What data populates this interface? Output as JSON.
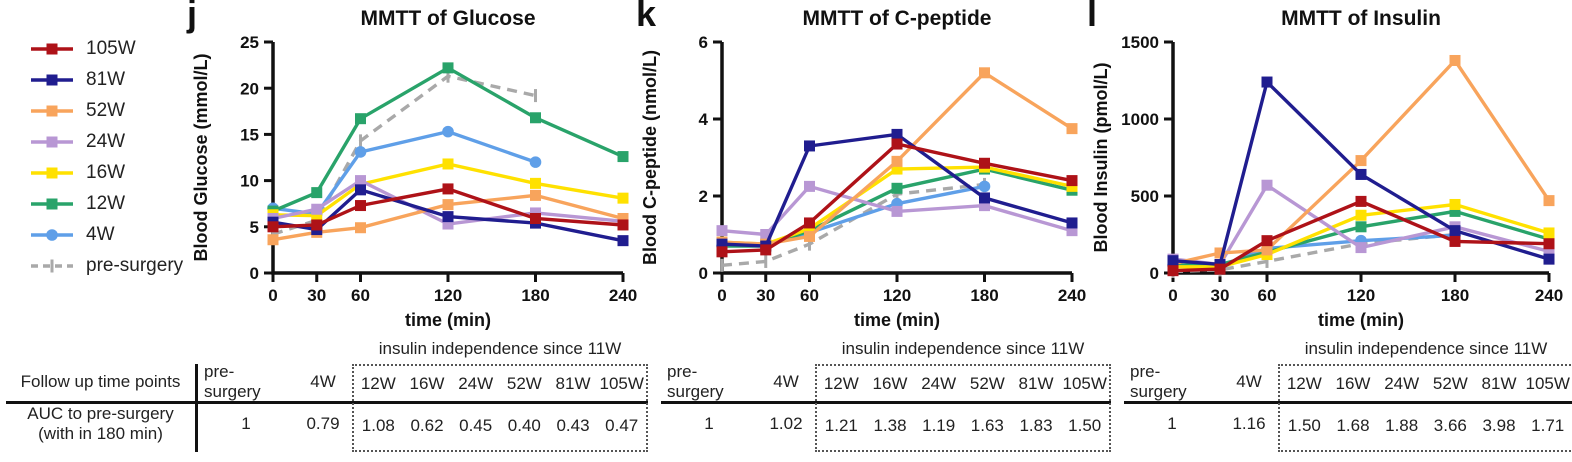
{
  "legend": {
    "items": [
      {
        "label": "105W",
        "color": "#AE1218",
        "marker": "square",
        "dash": false
      },
      {
        "label": "81W",
        "color": "#201D8F",
        "marker": "square",
        "dash": false
      },
      {
        "label": "52W",
        "color": "#F8A45C",
        "marker": "square",
        "dash": false
      },
      {
        "label": "24W",
        "color": "#B897D4",
        "marker": "square",
        "dash": false
      },
      {
        "label": "16W",
        "color": "#FFE100",
        "marker": "square",
        "dash": false
      },
      {
        "label": "12W",
        "color": "#29A36A",
        "marker": "square",
        "dash": false
      },
      {
        "label": "4W",
        "color": "#5F9FE8",
        "marker": "circle",
        "dash": false
      },
      {
        "label": "pre-surgery",
        "color": "#A9A9A9",
        "marker": "tick",
        "dash": true
      }
    ]
  },
  "chart_data": [
    {
      "type": "line",
      "panel_label": "j",
      "title": "MMTT of Glucose",
      "ylabel": "Blood Glucose (mmol/L)",
      "xlabel": "time (min)",
      "x": [
        0,
        30,
        60,
        120,
        180,
        240
      ],
      "ylim": [
        0,
        25
      ],
      "yticks": [
        0,
        5,
        10,
        15,
        20,
        25
      ],
      "series": [
        {
          "name": "105W",
          "values": [
            5.0,
            5.2,
            7.3,
            9.1,
            5.9,
            5.2
          ]
        },
        {
          "name": "81W",
          "values": [
            5.5,
            4.7,
            9.0,
            6.1,
            5.4,
            3.5
          ]
        },
        {
          "name": "52W",
          "values": [
            3.6,
            4.4,
            4.9,
            7.4,
            8.4,
            5.9
          ]
        },
        {
          "name": "24W",
          "values": [
            5.9,
            6.9,
            10.0,
            5.3,
            6.5,
            5.6
          ]
        },
        {
          "name": "16W",
          "values": [
            6.3,
            6.2,
            9.6,
            11.8,
            9.7,
            8.1
          ]
        },
        {
          "name": "12W",
          "values": [
            6.7,
            8.7,
            16.7,
            22.2,
            16.8,
            12.6
          ]
        },
        {
          "name": "4W",
          "values": [
            7.0,
            6.4,
            13.1,
            15.3,
            12.0,
            null
          ]
        },
        {
          "name": "pre-surgery",
          "values": [
            4.2,
            5.7,
            14.3,
            21.3,
            19.2,
            null
          ]
        }
      ]
    },
    {
      "type": "line",
      "panel_label": "k",
      "title": "MMTT of C-peptide",
      "ylabel": "Blood C-peptide (nmol/L)",
      "xlabel": "time (min)",
      "x": [
        0,
        30,
        60,
        120,
        180,
        240
      ],
      "ylim": [
        0,
        6
      ],
      "yticks": [
        0,
        2,
        4,
        6
      ],
      "series": [
        {
          "name": "105W",
          "values": [
            0.55,
            0.6,
            1.3,
            3.35,
            2.85,
            2.4
          ]
        },
        {
          "name": "81W",
          "values": [
            0.75,
            0.7,
            3.3,
            3.6,
            1.95,
            1.3
          ]
        },
        {
          "name": "52W",
          "values": [
            0.8,
            0.75,
            0.95,
            2.9,
            5.2,
            3.75
          ]
        },
        {
          "name": "24W",
          "values": [
            1.1,
            1.0,
            2.25,
            1.6,
            1.75,
            1.1
          ]
        },
        {
          "name": "16W",
          "values": [
            0.8,
            0.75,
            1.15,
            2.7,
            2.75,
            2.25
          ]
        },
        {
          "name": "12W",
          "values": [
            0.7,
            0.7,
            1.1,
            2.2,
            2.7,
            2.15
          ]
        },
        {
          "name": "4W",
          "values": [
            0.7,
            0.75,
            1.05,
            1.8,
            2.25,
            null
          ]
        },
        {
          "name": "pre-surgery",
          "values": [
            0.2,
            0.3,
            0.75,
            2.05,
            2.3,
            null
          ]
        }
      ]
    },
    {
      "type": "line",
      "panel_label": "l",
      "title": "MMTT of Insulin",
      "ylabel": "Blood Insulin (pmol/L)",
      "xlabel": "time (min)",
      "x": [
        0,
        30,
        60,
        120,
        180,
        240
      ],
      "ylim": [
        0,
        1500
      ],
      "yticks": [
        0,
        500,
        1000,
        1500
      ],
      "series": [
        {
          "name": "105W",
          "values": [
            15,
            25,
            210,
            465,
            205,
            190
          ]
        },
        {
          "name": "81W",
          "values": [
            80,
            55,
            1240,
            640,
            275,
            90
          ]
        },
        {
          "name": "52W",
          "values": [
            60,
            130,
            150,
            730,
            1380,
            470
          ]
        },
        {
          "name": "24W",
          "values": [
            90,
            55,
            570,
            165,
            300,
            140
          ]
        },
        {
          "name": "16W",
          "values": [
            40,
            40,
            120,
            375,
            445,
            260
          ]
        },
        {
          "name": "12W",
          "values": [
            50,
            55,
            135,
            300,
            400,
            220
          ]
        },
        {
          "name": "4W",
          "values": [
            50,
            45,
            160,
            210,
            245,
            null
          ]
        },
        {
          "name": "pre-surgery",
          "values": [
            10,
            20,
            75,
            190,
            250,
            null
          ]
        }
      ]
    }
  ],
  "tables": {
    "caption": "insulin independence since 11W",
    "row_label_header": "Follow up time points",
    "row_label_line1": "AUC to pre-surgery",
    "row_label_line2": "(with in 180 min)",
    "col_headers_left": [
      "pre-surgery",
      "4W"
    ],
    "col_headers_boxed": [
      "12W",
      "16W",
      "24W",
      "52W",
      "81W",
      "105W"
    ],
    "panels": [
      {
        "panel": "j",
        "values_left": [
          "1",
          "0.79"
        ],
        "values_boxed": [
          "1.08",
          "0.62",
          "0.45",
          "0.40",
          "0.43",
          "0.47"
        ]
      },
      {
        "panel": "k",
        "values_left": [
          "1",
          "1.02"
        ],
        "values_boxed": [
          "1.21",
          "1.38",
          "1.19",
          "1.63",
          "1.83",
          "1.50"
        ]
      },
      {
        "panel": "l",
        "values_left": [
          "1",
          "1.16"
        ],
        "values_boxed": [
          "1.50",
          "1.68",
          "1.88",
          "3.66",
          "3.98",
          "1.71"
        ]
      }
    ]
  }
}
